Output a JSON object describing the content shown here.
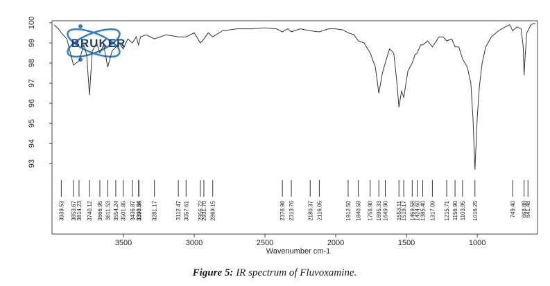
{
  "chart_data": {
    "type": "line",
    "x_label": "Wavenumber cm-1",
    "logo": "BRUKER",
    "color": "#333333",
    "xlim": [
      4005,
      574
    ],
    "ylim": [
      89.5,
      100.1
    ],
    "xticks": [
      3500,
      3000,
      2500,
      2000,
      1500,
      1000
    ],
    "yticks": [
      93,
      94,
      95,
      96,
      97,
      98,
      99,
      100
    ],
    "x": [
      3990,
      3960,
      3939.53,
      3900,
      3853.67,
      3814.23,
      3780,
      3760,
      3740.12,
      3720,
      3690,
      3666.95,
      3640,
      3611.53,
      3580,
      3554.24,
      3530,
      3501.85,
      3470,
      3436.87,
      3410,
      3393.54,
      3380,
      3340,
      3281.17,
      3200,
      3112.47,
      3057.61,
      3000,
      2956.72,
      2931.7,
      2900,
      2869.15,
      2800,
      2700,
      2600,
      2500,
      2420,
      2376.98,
      2340,
      2313.76,
      2250,
      2180.37,
      2116.05,
      2050,
      2000,
      1950,
      1912.5,
      1870,
      1840.59,
      1800,
      1756.9,
      1720,
      1695.33,
      1670,
      1649.9,
      1620,
      1590,
      1570,
      1553.11,
      1535,
      1519.17,
      1490,
      1459.58,
      1440,
      1424.6,
      1400,
      1385.4,
      1350,
      1317.09,
      1270,
      1240,
      1215.71,
      1180,
      1156.9,
      1130,
      1103.95,
      1070,
      1045,
      1030,
      1016.25,
      1000,
      985,
      965,
      940,
      900,
      850,
      800,
      770,
      749.4,
      720,
      690,
      675,
      668.88,
      660,
      650,
      641.48,
      620,
      590
    ],
    "values": [
      99.9,
      99.7,
      99.5,
      99.2,
      97.9,
      98.1,
      98.9,
      98.4,
      96.4,
      98.6,
      99.0,
      98.5,
      98.9,
      97.8,
      98.6,
      98.8,
      99.0,
      98.7,
      99.2,
      99.0,
      99.3,
      98.9,
      99.3,
      99.4,
      99.2,
      99.4,
      99.3,
      99.3,
      99.5,
      99.0,
      99.2,
      99.5,
      99.3,
      99.6,
      99.7,
      99.7,
      99.75,
      99.7,
      99.55,
      99.7,
      99.55,
      99.7,
      99.6,
      99.55,
      99.7,
      99.7,
      99.65,
      99.5,
      99.4,
      99.1,
      99.0,
      98.5,
      97.8,
      96.5,
      97.5,
      98.0,
      98.7,
      98.5,
      97.2,
      95.8,
      96.6,
      96.3,
      97.6,
      98.0,
      98.4,
      98.5,
      98.9,
      98.9,
      99.1,
      98.8,
      99.3,
      99.3,
      99.1,
      99.2,
      98.8,
      98.8,
      98.2,
      97.8,
      97.0,
      95.2,
      92.7,
      95.3,
      96.8,
      98.0,
      98.8,
      99.3,
      99.6,
      99.8,
      99.9,
      99.6,
      99.8,
      99.7,
      98.8,
      97.4,
      98.5,
      99.5,
      99.6,
      99.9,
      100.0
    ],
    "peaks": [
      3939.53,
      3853.67,
      3814.23,
      3740.12,
      3666.95,
      3611.53,
      3554.24,
      3501.85,
      3436.87,
      3393.54,
      3390.86,
      3281.17,
      3112.47,
      3057.61,
      2956.72,
      {
        "value": 2931.7,
        "label": "2931.70"
      },
      2869.15,
      2376.98,
      2313.76,
      2180.37,
      2116.05,
      {
        "value": 1912.5,
        "label": "1912.50"
      },
      1840.59,
      {
        "value": 1756.9,
        "label": "1756.90"
      },
      1695.33,
      {
        "value": 1649.9,
        "label": "1649.90"
      },
      1553.11,
      1519.17,
      1459.58,
      {
        "value": 1424.6,
        "label": "1424.60"
      },
      {
        "value": 1385.4,
        "label": "1385.40"
      },
      1317.09,
      1215.71,
      {
        "value": 1156.9,
        "label": "1156.90"
      },
      1103.95,
      1016.25,
      {
        "value": 749.4,
        "label": "749.40"
      },
      668.88,
      641.48
    ]
  },
  "caption": {
    "label": "Figure 5:",
    "text": "IR spectrum of Fluvoxamine."
  }
}
